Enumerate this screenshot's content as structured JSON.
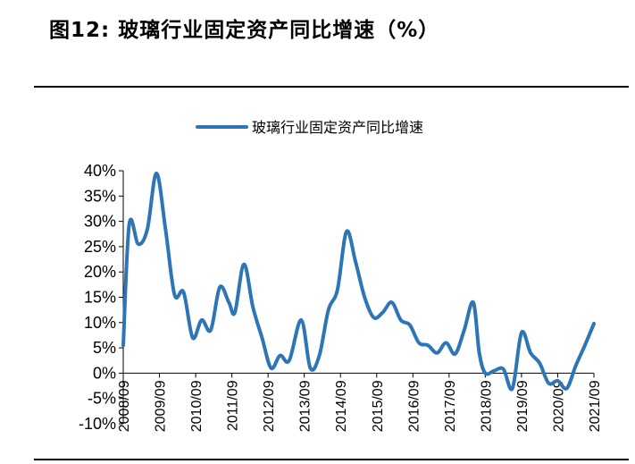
{
  "figure": {
    "title": "图12:  玻璃行业固定资产同比增速（%）"
  },
  "chart_data": {
    "type": "line",
    "title": "图12:  玻璃行业固定资产同比增速（%）",
    "xlabel": "",
    "ylabel": "",
    "ylim": [
      -10,
      40
    ],
    "y_ticks": [
      "-10%",
      "-5%",
      "0%",
      "5%",
      "10%",
      "15%",
      "20%",
      "25%",
      "30%",
      "35%",
      "40%"
    ],
    "x_ticks": [
      "2008/09",
      "2009/09",
      "2010/09",
      "2011/09",
      "2012/09",
      "2013/09",
      "2014/09",
      "2015/09",
      "2016/09",
      "2017/09",
      "2018/09",
      "2019/09",
      "2020/09",
      "2021/09"
    ],
    "legend": {
      "position": "top",
      "entries": [
        "玻璃行业固定资产同比增速"
      ]
    },
    "grid": false,
    "series": [
      {
        "name": "玻璃行业固定资产同比增速",
        "color": "#2E75B6",
        "points": [
          [
            "2008/09",
            5.5
          ],
          [
            "2008/11",
            29.5
          ],
          [
            "2009/02",
            25.5
          ],
          [
            "2009/05",
            28.5
          ],
          [
            "2009/08",
            39.5
          ],
          [
            "2009/11",
            28.5
          ],
          [
            "2010/02",
            15.5
          ],
          [
            "2010/05",
            16.0
          ],
          [
            "2010/08",
            7.0
          ],
          [
            "2010/11",
            10.5
          ],
          [
            "2011/02",
            8.5
          ],
          [
            "2011/05",
            17.0
          ],
          [
            "2011/08",
            14.0
          ],
          [
            "2011/10",
            12.0
          ],
          [
            "2012/01",
            21.5
          ],
          [
            "2012/04",
            13.0
          ],
          [
            "2012/07",
            7.0
          ],
          [
            "2012/10",
            1.0
          ],
          [
            "2013/01",
            3.5
          ],
          [
            "2013/04",
            2.5
          ],
          [
            "2013/08",
            10.5
          ],
          [
            "2013/11",
            1.0
          ],
          [
            "2014/02",
            3.5
          ],
          [
            "2014/05",
            12.5
          ],
          [
            "2014/08",
            16.5
          ],
          [
            "2014/11",
            28.0
          ],
          [
            "2015/02",
            22.0
          ],
          [
            "2015/05",
            15.0
          ],
          [
            "2015/08",
            11.0
          ],
          [
            "2015/11",
            12.0
          ],
          [
            "2016/02",
            14.0
          ],
          [
            "2016/05",
            10.5
          ],
          [
            "2016/08",
            9.5
          ],
          [
            "2016/11",
            6.0
          ],
          [
            "2017/02",
            5.5
          ],
          [
            "2017/05",
            4.0
          ],
          [
            "2017/08",
            6.0
          ],
          [
            "2017/11",
            3.8
          ],
          [
            "2018/02",
            8.5
          ],
          [
            "2018/05",
            14.0
          ],
          [
            "2018/07",
            4.0
          ],
          [
            "2018/09",
            0.0
          ],
          [
            "2018/12",
            0.5
          ],
          [
            "2019/03",
            0.8
          ],
          [
            "2019/06",
            -3.0
          ],
          [
            "2019/09",
            8.0
          ],
          [
            "2019/12",
            4.0
          ],
          [
            "2020/03",
            2.0
          ],
          [
            "2020/06",
            -2.0
          ],
          [
            "2020/09",
            -1.5
          ],
          [
            "2020/12",
            -3.0
          ],
          [
            "2021/03",
            1.5
          ],
          [
            "2021/06",
            5.5
          ],
          [
            "2021/09",
            9.8
          ]
        ]
      }
    ]
  }
}
